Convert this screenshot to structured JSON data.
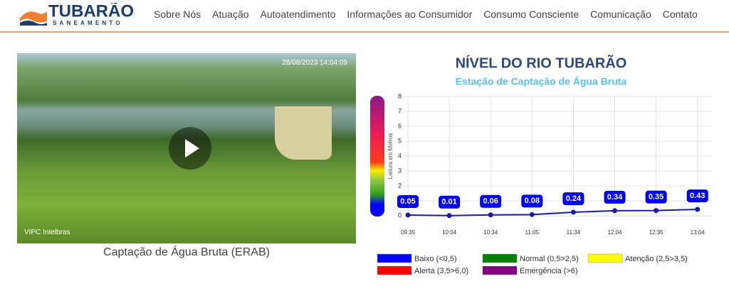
{
  "header": {
    "logo": "TUBARÃO",
    "logo_sub": "SANEAMENTO",
    "nav": [
      "Sobre Nós",
      "Atuação",
      "Autoatendimento",
      "Informações ao Consumidor",
      "Consumo Consciente",
      "Comunicação",
      "Contato"
    ]
  },
  "video": {
    "timestamp": "28/08/2023 14:04:09",
    "watermark": "VIPC Intelbras",
    "caption": "Captação de Água Bruta (ERAB)"
  },
  "chart_data": {
    "type": "line",
    "title": "NÍVEL DO RIO TUBARÃO",
    "subtitle": "Estação de Captação de Água Bruta",
    "y_label": "Leitura em Metros",
    "categories": [
      "09:35",
      "10:04",
      "10:34",
      "11:05",
      "11:34",
      "12:04",
      "12:35",
      "13:04"
    ],
    "values": [
      0.05,
      0.01,
      0.06,
      0.08,
      0.24,
      0.34,
      0.35,
      0.43
    ],
    "color": "#1a1aa8",
    "label_color": "#0000ee",
    "ylim": [
      0,
      8
    ],
    "yticks": [
      0,
      1,
      2,
      3,
      4,
      5,
      6,
      7,
      8
    ],
    "grid": true,
    "levels": [
      {
        "name": "Baixo (<0,5)",
        "color": "#0000ff"
      },
      {
        "name": "Normal (0,5>2,5)",
        "color": "#008000"
      },
      {
        "name": "Atenção (2,5>3,5)",
        "color": "#ffff00"
      },
      {
        "name": "Alerta (3,5>6,0)",
        "color": "#ff0000"
      },
      {
        "name": "Emergência (>6)",
        "color": "#800080"
      }
    ]
  }
}
